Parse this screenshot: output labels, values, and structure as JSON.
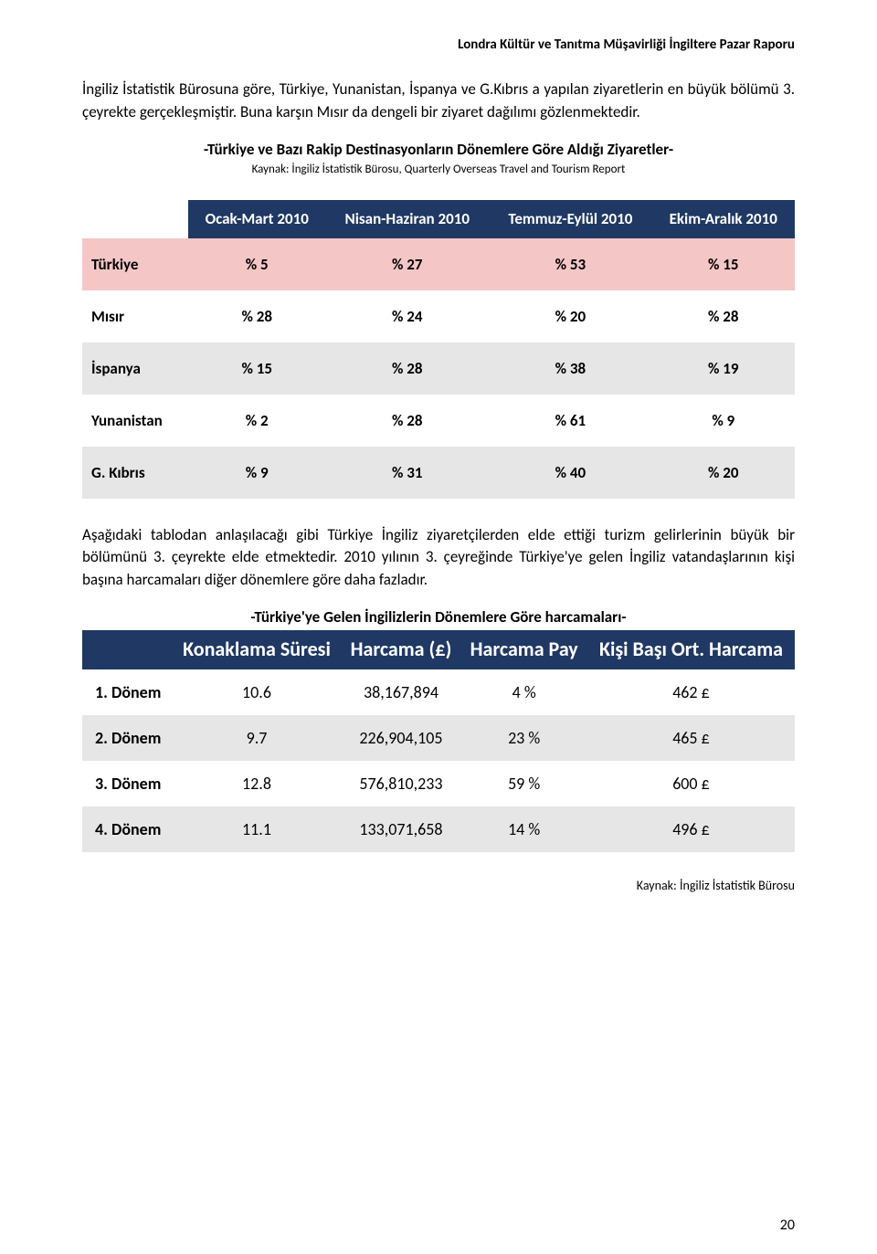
{
  "header": "Londra Kültür ve Tanıtma Müşavirliği İngiltere Pazar Raporu",
  "para1": "İngiliz İstatistik Bürosuna göre, Türkiye, Yunanistan, İspanya ve G.Kıbrıs a yapılan ziyaretlerin en büyük bölümü 3. çeyrekte gerçekleşmiştir. Buna karşın Mısır da dengeli bir ziyaret dağılımı gözlenmektedir.",
  "section1_title": "-Türkiye ve Bazı Rakip Destinasyonların Dönemlere Göre Aldığı Ziyaretler-",
  "section1_source": "Kaynak: İngiliz İstatistik Bürosu, Quarterly Overseas Travel and Tourism Report",
  "table1": {
    "columns": [
      "",
      "Ocak-Mart 2010",
      "Nisan-Haziran 2010",
      "Temmuz-Eylül 2010",
      "Ekim-Aralık 2010"
    ],
    "rows": [
      {
        "label": "Türkiye",
        "cells": [
          "% 5",
          "% 27",
          "% 53",
          "% 15"
        ],
        "style": "r-pink"
      },
      {
        "label": "Mısır",
        "cells": [
          "% 28",
          "% 24",
          "% 20",
          "% 28"
        ],
        "style": "r-white"
      },
      {
        "label": "İspanya",
        "cells": [
          "% 15",
          "% 28",
          "% 38",
          "% 19"
        ],
        "style": "r-grey"
      },
      {
        "label": "Yunanistan",
        "cells": [
          "% 2",
          "% 28",
          "% 61",
          "% 9"
        ],
        "style": "r-white"
      },
      {
        "label": "G. Kıbrıs",
        "cells": [
          "% 9",
          "% 31",
          "% 40",
          "% 20"
        ],
        "style": "r-grey"
      }
    ]
  },
  "para2": "Aşağıdaki tablodan anlaşılacağı gibi Türkiye İngiliz ziyaretçilerden elde ettiği turizm gelirlerinin büyük bir bölümünü 3. çeyrekte elde etmektedir. 2010 yılının 3. çeyreğinde Türkiye'ye gelen İngiliz vatandaşlarının kişi başına harcamaları diğer dönemlere göre daha fazladır.",
  "section2_title": "-Türkiye'ye Gelen İngilizlerin Dönemlere Göre harcamaları-",
  "table2": {
    "columns": [
      "",
      "Konaklama Süresi",
      "Harcama (£)",
      "Harcama Pay",
      "Kişi Başı Ort. Harcama"
    ],
    "rows": [
      {
        "label": "1.   Dönem",
        "cells": [
          "10.6",
          "38,167,894",
          "4 %",
          "462 £"
        ],
        "style": "r-white"
      },
      {
        "label": "2.   Dönem",
        "cells": [
          "9.7",
          "226,904,105",
          "23 %",
          "465 £"
        ],
        "style": "r-grey"
      },
      {
        "label": "3.   Dönem",
        "cells": [
          "12.8",
          "576,810,233",
          "59 %",
          "600 £"
        ],
        "style": "r-white"
      },
      {
        "label": "4.   Dönem",
        "cells": [
          "11.1",
          "133,071,658",
          "14 %",
          "496 £"
        ],
        "style": "r-grey"
      }
    ]
  },
  "source_right": "Kaynak: İngiliz İstatistik Bürosu",
  "page_number": "20"
}
